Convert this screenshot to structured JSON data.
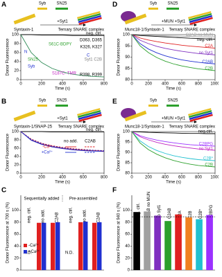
{
  "chart_data": [
    {
      "panel": "A",
      "type": "line",
      "header": [
        "Syb",
        "SN25",
        "Syntaxin-1",
        "+Syt1",
        "Ternary SNARE complex"
      ],
      "x": [
        0,
        100,
        200,
        300,
        400,
        500,
        600,
        700,
        800
      ],
      "xlim": [
        0,
        800
      ],
      "xticks": [
        0,
        200,
        400,
        600,
        800
      ],
      "ylim": [
        0,
        100
      ],
      "yticks": [
        0,
        20,
        40,
        60,
        80,
        100
      ],
      "xlabel": "Time (s)",
      "ylabel": "Donor Fluorescence",
      "series": [
        {
          "name": "neg. ctrl.",
          "color": "#000000",
          "values": [
            100,
            100,
            99,
            99,
            99,
            98,
            98,
            98,
            98
          ]
        },
        {
          "color": "#2e8b57",
          "values": [
            100,
            60,
            38,
            25,
            17,
            12,
            9,
            7,
            6
          ]
        }
      ],
      "annotations": [
        "N",
        "C",
        "SN25",
        "Syb",
        "S61C-BDPY",
        "S187C- TMR",
        "D363, D365",
        "K326, K327",
        "R398, R399",
        "Syt1 C2B"
      ]
    },
    {
      "panel": "B",
      "type": "line",
      "header": [
        "Syb",
        "SN25",
        "Syntaxin-1/SNAP-25",
        "+Syt1",
        "Ternary SNARE complex"
      ],
      "x": [
        0,
        100,
        200,
        300,
        400,
        500,
        600,
        700,
        800
      ],
      "xlim": [
        0,
        800
      ],
      "xticks": [
        0,
        200,
        400,
        600,
        800
      ],
      "ylim": [
        0,
        100
      ],
      "yticks": [
        0,
        20,
        40,
        60,
        80,
        100
      ],
      "xlabel": "Time (s)",
      "ylabel": "Donor Fluorescence",
      "series": [
        {
          "name": "neg. ctrl.",
          "color": "#000000",
          "values": [
            100,
            100,
            100,
            99,
            99,
            99,
            99,
            99,
            99
          ]
        },
        {
          "color": "#e02020",
          "values": [
            100,
            80,
            70,
            64,
            60,
            57,
            55,
            54,
            53
          ]
        },
        {
          "color": "#2030d0",
          "values": [
            100,
            79,
            69,
            63,
            59,
            56,
            54,
            53,
            52
          ]
        },
        {
          "color": "#e02020",
          "dash": true,
          "values": [
            100,
            82,
            72,
            66,
            62,
            59,
            57,
            55,
            54
          ]
        },
        {
          "color": "#2030d0",
          "dash": true,
          "values": [
            100,
            81,
            71,
            65,
            61,
            58,
            56,
            55,
            54
          ]
        }
      ],
      "legend_columns": [
        "no add.",
        "C2AB"
      ],
      "legend_rows": [
        "-Ca²⁺",
        "+Ca²⁺"
      ]
    },
    {
      "panel": "C",
      "type": "bar",
      "groups": [
        "Sequentially added",
        "Pre-assembled"
      ],
      "categories": [
        "neg. ctrl.",
        "no add.",
        "C2AB",
        "neg. ctrl.",
        "no add.",
        "C2AB"
      ],
      "ylim": [
        0,
        125
      ],
      "yticks": [
        0,
        20,
        40,
        60,
        80,
        100
      ],
      "ylabel": "Donor Fluorescence at 700 s (%)",
      "series": [
        {
          "name": "-Ca²⁺",
          "color": "#e02020",
          "values": [
            null,
            79,
            79,
            null,
            80,
            79
          ]
        },
        {
          "name": "+Ca²⁺",
          "color": "#2030d0",
          "values": [
            null,
            79,
            80,
            null,
            81,
            80
          ]
        }
      ],
      "annotations": [
        "N.D.",
        "N.D."
      ]
    },
    {
      "panel": "D",
      "type": "line",
      "header": [
        "Syb",
        "SN25",
        "Munc18-1/Syntaxin-1",
        "+MUN +Syt1",
        "Ternary SNARE complex"
      ],
      "x": [
        0,
        100,
        200,
        300,
        400,
        500,
        600,
        700,
        800,
        900,
        1000
      ],
      "xlim": [
        0,
        1000
      ],
      "xticks": [
        0,
        200,
        400,
        600,
        800,
        1000
      ],
      "ylim": [
        80,
        100
      ],
      "yticks": [
        80,
        85,
        90,
        95,
        100
      ],
      "xlabel": "Time (s)",
      "ylabel": "Donor Fluorescence",
      "series": [
        {
          "name": "C2AB no MUN",
          "color": "#a0a0a0",
          "values": [
            100,
            99.8,
            99.7,
            99.6,
            99.5,
            99.4,
            99.3,
            99.2,
            99.1,
            99,
            99
          ]
        },
        {
          "name": "neg. ctrl.",
          "color": "#000000",
          "values": [
            100,
            99.6,
            99.4,
            99.2,
            99,
            98.8,
            98.6,
            98.4,
            98.3,
            98.1,
            98
          ]
        },
        {
          "name": "C2A",
          "color": "#e02020",
          "values": [
            100,
            98.5,
            97.6,
            96.9,
            96.3,
            95.8,
            95.3,
            94.9,
            94.6,
            94.3,
            94
          ]
        },
        {
          "name": "no Syt1",
          "color": "#8030c0",
          "values": [
            100,
            97.5,
            96,
            94.8,
            93.9,
            93.2,
            92.6,
            92.1,
            91.6,
            91.3,
            91
          ]
        },
        {
          "name": "C2AB",
          "color": "#2030d0",
          "values": [
            100,
            96,
            93.6,
            91.9,
            90.6,
            89.6,
            88.8,
            88.2,
            87.7,
            87.3,
            87
          ]
        },
        {
          "name": "C2B",
          "color": "#2ca02c",
          "values": [
            100,
            95,
            92,
            89.8,
            88.2,
            87,
            86.1,
            85.4,
            84.8,
            84.4,
            84
          ]
        }
      ]
    },
    {
      "panel": "E",
      "type": "line",
      "header": [
        "Syb",
        "SN25",
        "Munc18-1/Syntaxin-1",
        "+MUN +Syt1",
        "Ternary SNARE complex"
      ],
      "x": [
        0,
        100,
        200,
        300,
        400,
        500,
        600,
        700,
        800,
        900,
        1000
      ],
      "xlim": [
        0,
        1000
      ],
      "xticks": [
        0,
        200,
        400,
        600,
        800,
        1000
      ],
      "ylim": [
        80,
        100
      ],
      "yticks": [
        80,
        85,
        90,
        95,
        100
      ],
      "xlabel": "Time (s)",
      "ylabel": "Donor Fluorescence",
      "series": [
        {
          "name": "neg.ctrl.",
          "color": "#000000",
          "values": [
            100,
            99.8,
            99.6,
            99.5,
            99.4,
            99.3,
            99.2,
            99.1,
            99.1,
            99,
            99
          ]
        },
        {
          "name": "C2BPG",
          "color": "#9b30ff",
          "values": [
            100,
            98,
            96.8,
            95.9,
            95.2,
            94.6,
            94.1,
            93.7,
            93.4,
            93.2,
            93
          ]
        },
        {
          "name": "no Syt1",
          "color": "#c020c0",
          "values": [
            100,
            97.5,
            96,
            94.8,
            93.9,
            93.2,
            92.6,
            92.1,
            91.6,
            91.3,
            91
          ]
        },
        {
          "name": "C2B*",
          "color": "#20c0d0",
          "values": [
            100,
            95.5,
            92.8,
            90.9,
            89.5,
            88.4,
            87.6,
            87,
            86.5,
            86.2,
            86
          ]
        },
        {
          "name": "C2B",
          "color": "#2ca02c",
          "values": [
            100,
            94.5,
            91.3,
            89.1,
            87.4,
            86.1,
            85.1,
            84.3,
            83.7,
            83.3,
            83
          ]
        }
      ]
    },
    {
      "panel": "F",
      "type": "bar",
      "categories": [
        "neg. ctrl.",
        "C2AB no MUN",
        "no Syt1",
        "C2AB",
        "C2A",
        "C2B",
        "C2B*",
        "C2BPG"
      ],
      "ylim": [
        0,
        125
      ],
      "yticks": [
        0,
        20,
        40,
        60,
        80,
        100
      ],
      "ylabel": "Donor Fluorescence at 940 s (%)",
      "values": [
        97,
        98,
        91,
        82,
        93,
        88,
        85,
        92
      ],
      "colors": [
        "#000000",
        "#a0a0a0",
        "#8030c0",
        "#2ca02c",
        "#e02020",
        "#f08020",
        "#20c0d0",
        "#9b30ff"
      ],
      "reference_line": 89
    }
  ]
}
